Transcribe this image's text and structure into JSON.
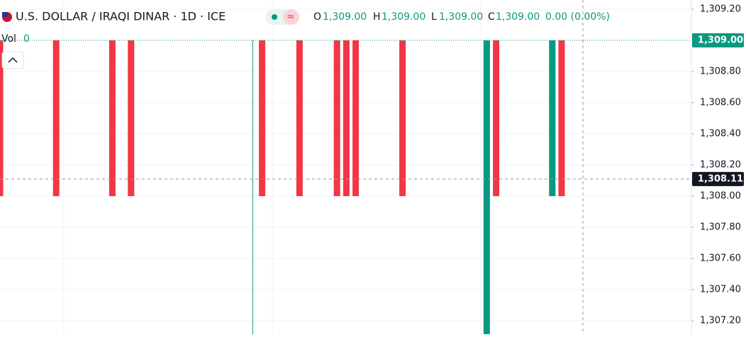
{
  "chart_data": {
    "type": "candlestick",
    "title": "U.S. DOLLAR / IRAQI DINAR · 1D · ICE",
    "legend": {
      "o_label": "O",
      "o_value": "1,309.00",
      "h_label": "H",
      "h_value": "1,309.00",
      "l_label": "L",
      "l_value": "1,309.00",
      "c_label": "C",
      "c_value": "1,309.00",
      "change": "0.00 (0.00%)"
    },
    "volume": {
      "label": "Vol",
      "value": 0
    },
    "up_color": "#089981",
    "down_color": "#f23645",
    "categories": [
      null,
      null,
      null,
      null,
      null,
      null,
      null,
      null,
      null,
      null,
      null,
      null,
      null,
      null,
      null,
      null,
      null,
      null,
      null,
      null,
      null,
      null,
      null,
      null,
      null,
      null,
      null,
      null,
      null,
      null,
      null,
      null,
      null,
      null,
      null,
      null,
      null,
      null,
      null,
      null,
      null,
      null,
      null,
      null,
      null,
      null,
      null,
      null,
      null,
      null,
      null,
      null,
      null,
      null,
      null,
      null,
      null,
      null,
      null,
      null,
      null
    ],
    "open": [
      1309,
      null,
      null,
      null,
      null,
      null,
      1309,
      null,
      null,
      null,
      null,
      null,
      1309,
      null,
      1309,
      null,
      null,
      null,
      null,
      null,
      null,
      null,
      null,
      null,
      null,
      null,
      null,
      1309,
      1309,
      null,
      null,
      null,
      1309,
      null,
      null,
      null,
      1309,
      1309,
      1309,
      null,
      null,
      null,
      null,
      1309,
      null,
      null,
      null,
      null,
      null,
      null,
      null,
      null,
      1307,
      1309,
      null,
      null,
      null,
      null,
      null,
      1308,
      1309
    ],
    "high": [
      1309,
      null,
      null,
      null,
      null,
      null,
      1309,
      null,
      null,
      null,
      null,
      null,
      1309,
      null,
      1309,
      null,
      null,
      null,
      null,
      null,
      null,
      null,
      null,
      null,
      null,
      null,
      null,
      1309,
      1309,
      null,
      null,
      null,
      1309,
      null,
      null,
      null,
      1309,
      1309,
      1309,
      null,
      null,
      null,
      null,
      1309,
      null,
      null,
      null,
      null,
      null,
      null,
      null,
      null,
      1309,
      1309,
      null,
      null,
      null,
      null,
      null,
      1309,
      1309
    ],
    "low": [
      1308,
      null,
      null,
      null,
      null,
      null,
      1308,
      null,
      null,
      null,
      null,
      null,
      1308,
      null,
      1308,
      null,
      null,
      null,
      null,
      null,
      null,
      null,
      null,
      null,
      null,
      null,
      null,
      1307,
      1308,
      null,
      null,
      null,
      1308,
      null,
      null,
      null,
      1308,
      1308,
      1308,
      null,
      null,
      null,
      null,
      1308,
      null,
      null,
      null,
      null,
      null,
      null,
      null,
      null,
      1307,
      1308,
      null,
      null,
      null,
      null,
      null,
      1308,
      1308
    ],
    "close": [
      1308,
      null,
      null,
      null,
      null,
      null,
      1308,
      null,
      null,
      null,
      null,
      null,
      1308,
      null,
      1308,
      null,
      null,
      null,
      null,
      null,
      null,
      null,
      null,
      null,
      null,
      null,
      null,
      1309,
      1308,
      null,
      null,
      null,
      1308,
      null,
      null,
      null,
      1308,
      1308,
      1308,
      null,
      null,
      null,
      null,
      1308,
      null,
      null,
      null,
      null,
      null,
      null,
      null,
      null,
      1309,
      1308,
      null,
      null,
      null,
      null,
      null,
      1309,
      1308
    ],
    "ylim": [
      1307.114,
      1309.259
    ],
    "yticks": [
      {
        "value": 1309.2,
        "label": "1,309.20"
      },
      {
        "value": 1308.8,
        "label": "1,308.80"
      },
      {
        "value": 1308.6,
        "label": "1,308.60"
      },
      {
        "value": 1308.4,
        "label": "1,308.40"
      },
      {
        "value": 1308.2,
        "label": "1,308.20"
      },
      {
        "value": 1308.0,
        "label": "1,308.00"
      },
      {
        "value": 1307.8,
        "label": "1,307.80"
      },
      {
        "value": 1307.6,
        "label": "1,307.60"
      },
      {
        "value": 1307.4,
        "label": "1,307.40"
      },
      {
        "value": 1307.2,
        "label": "1,307.20"
      }
    ],
    "last_price": {
      "value": 1309.0,
      "label": "1,309.00"
    },
    "crosshair_price": {
      "value": 1308.11,
      "label": "1,308.11"
    },
    "grid": true
  }
}
